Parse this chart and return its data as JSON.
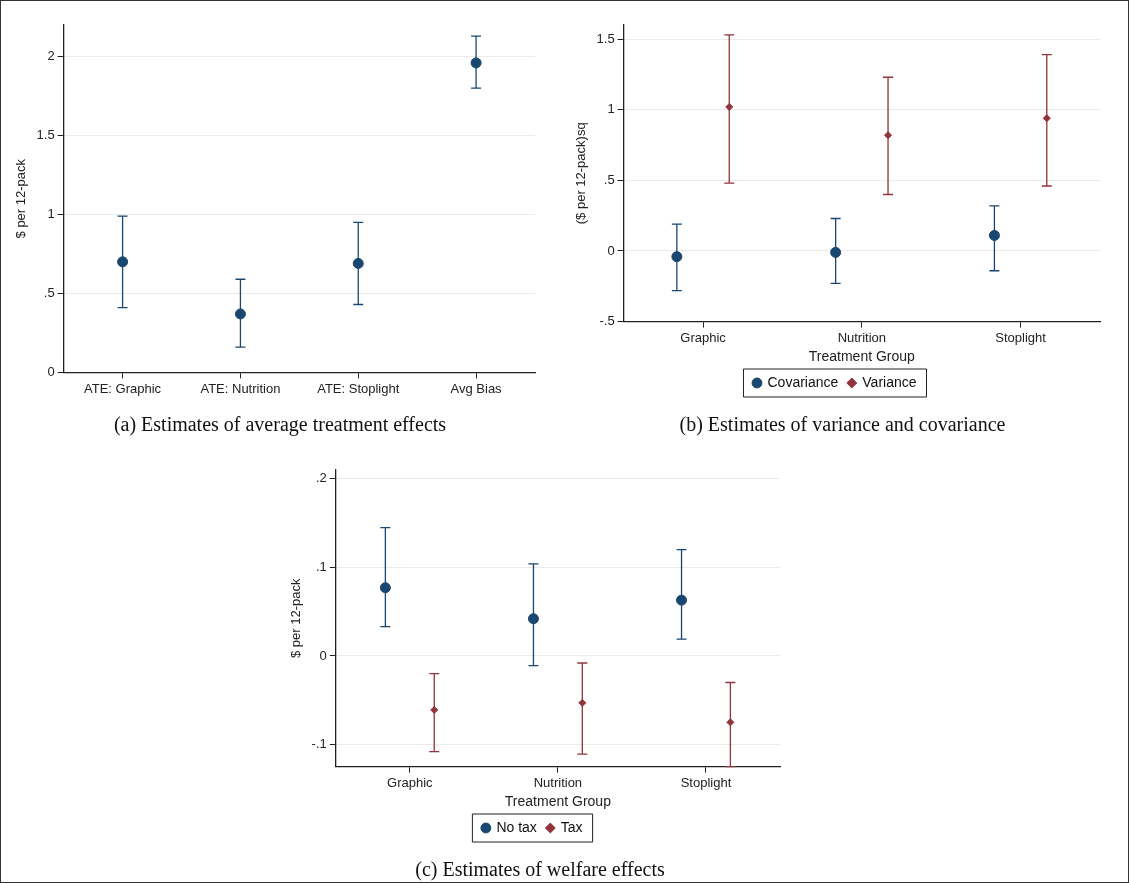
{
  "chart_data": [
    {
      "type": "scatter",
      "ylabel": "$ per 12-pack",
      "categories": [
        "ATE: Graphic",
        "ATE: Nutrition",
        "ATE: Stoplight",
        "Avg Bias"
      ],
      "marker": "circle",
      "grid": "y",
      "series": [
        {
          "color": "#1a476f",
          "values": [
            0.7,
            0.37,
            0.69,
            1.96
          ],
          "errors": [
            [
              0.41,
              0.99
            ],
            [
              0.16,
              0.59
            ],
            [
              0.43,
              0.95
            ],
            [
              1.8,
              2.13
            ]
          ]
        }
      ],
      "ylim": [
        0,
        2.2
      ],
      "yticks": [
        0,
        {
          "value": 0.5,
          "label": ".5"
        },
        1,
        1.5,
        2
      ],
      "annotations": [
        "(a) Estimates of average treatment effects"
      ]
    },
    {
      "type": "scatter",
      "ylabel": "($ per 12-pack)sq",
      "xlabel": "Treatment Group",
      "categories": [
        "Graphic",
        "Nutrition",
        "Stoplight"
      ],
      "grid": "y",
      "legend": "bottom",
      "series": [
        {
          "name": "Covariance",
          "color": "#1a476f",
          "marker": "circle",
          "values": [
            -0.04,
            -0.01,
            0.11
          ],
          "errors": [
            [
              -0.28,
              0.19
            ],
            [
              -0.23,
              0.23
            ],
            [
              -0.14,
              0.32
            ]
          ]
        },
        {
          "name": "Variance",
          "color": "#90353b",
          "marker": "diamond",
          "values": [
            1.02,
            0.82,
            0.94
          ],
          "errors": [
            [
              0.48,
              1.53
            ],
            [
              0.4,
              1.23
            ],
            [
              0.46,
              1.39
            ]
          ]
        }
      ],
      "ylim": [
        -0.5,
        1.6
      ],
      "yticks": [
        {
          "value": -0.5,
          "label": "-.5"
        },
        0,
        {
          "value": 0.5,
          "label": ".5"
        },
        1,
        1.5
      ],
      "annotations": [
        "(b) Estimates of variance and covariance"
      ]
    },
    {
      "type": "scatter",
      "ylabel": "$ per 12-pack",
      "xlabel": "Treatment Group",
      "categories": [
        "Graphic",
        "Nutrition",
        "Stoplight"
      ],
      "grid": "y",
      "legend": "bottom",
      "series": [
        {
          "name": "No tax",
          "color": "#1a476f",
          "marker": "circle",
          "values": [
            0.077,
            0.042,
            0.063
          ],
          "errors": [
            [
              0.033,
              0.145
            ],
            [
              -0.011,
              0.104
            ],
            [
              0.019,
              0.12
            ]
          ]
        },
        {
          "name": "Tax",
          "color": "#90353b",
          "marker": "diamond",
          "values": [
            -0.061,
            -0.053,
            -0.075
          ],
          "errors": [
            [
              -0.108,
              -0.02
            ],
            [
              -0.111,
              -0.008
            ],
            [
              -0.125,
              -0.03
            ]
          ]
        }
      ],
      "ylim": [
        -0.125,
        0.21
      ],
      "yticks": [
        {
          "value": -0.1,
          "label": "-.1"
        },
        0,
        {
          "value": 0.1,
          "label": ".1"
        },
        {
          "value": 0.2,
          "label": ".2"
        }
      ],
      "annotations": [
        "(c) Estimates of welfare effects"
      ]
    }
  ]
}
